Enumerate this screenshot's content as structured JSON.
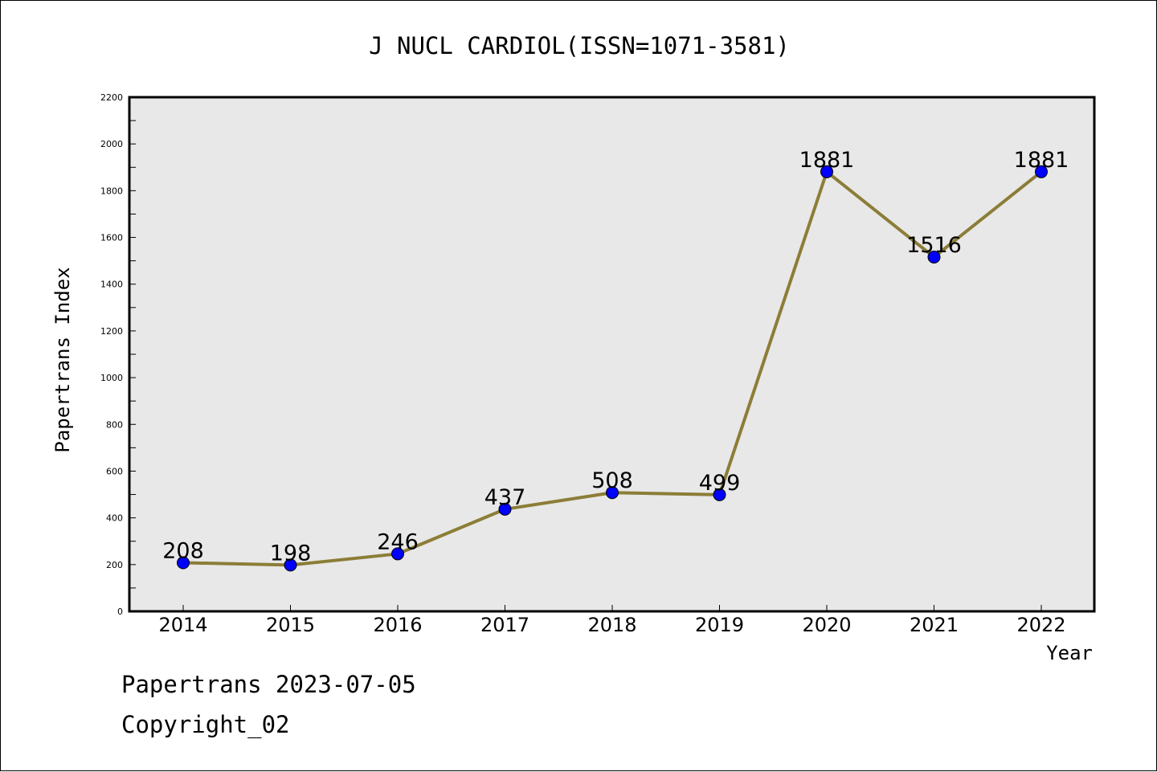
{
  "chart_data": {
    "type": "line",
    "title": "J NUCL CARDIOL(ISSN=1071-3581)",
    "xlabel": "Year",
    "ylabel": "Papertrans Index",
    "categories": [
      "2014",
      "2015",
      "2016",
      "2017",
      "2018",
      "2019",
      "2020",
      "2021",
      "2022"
    ],
    "values": [
      208,
      198,
      246,
      437,
      508,
      499,
      1881,
      1516,
      1881
    ],
    "ylim": [
      0,
      2200
    ],
    "yticks": [
      0,
      200,
      400,
      600,
      800,
      1000,
      1200,
      1400,
      1600,
      1800,
      2000,
      2200
    ],
    "grid": false,
    "line_color": "#8c7d37",
    "marker_color": "#0000ff",
    "plot_background": "#e8e8e8"
  },
  "footer": {
    "line1": "Papertrans 2023-07-05",
    "line2": "Copyright_02"
  }
}
